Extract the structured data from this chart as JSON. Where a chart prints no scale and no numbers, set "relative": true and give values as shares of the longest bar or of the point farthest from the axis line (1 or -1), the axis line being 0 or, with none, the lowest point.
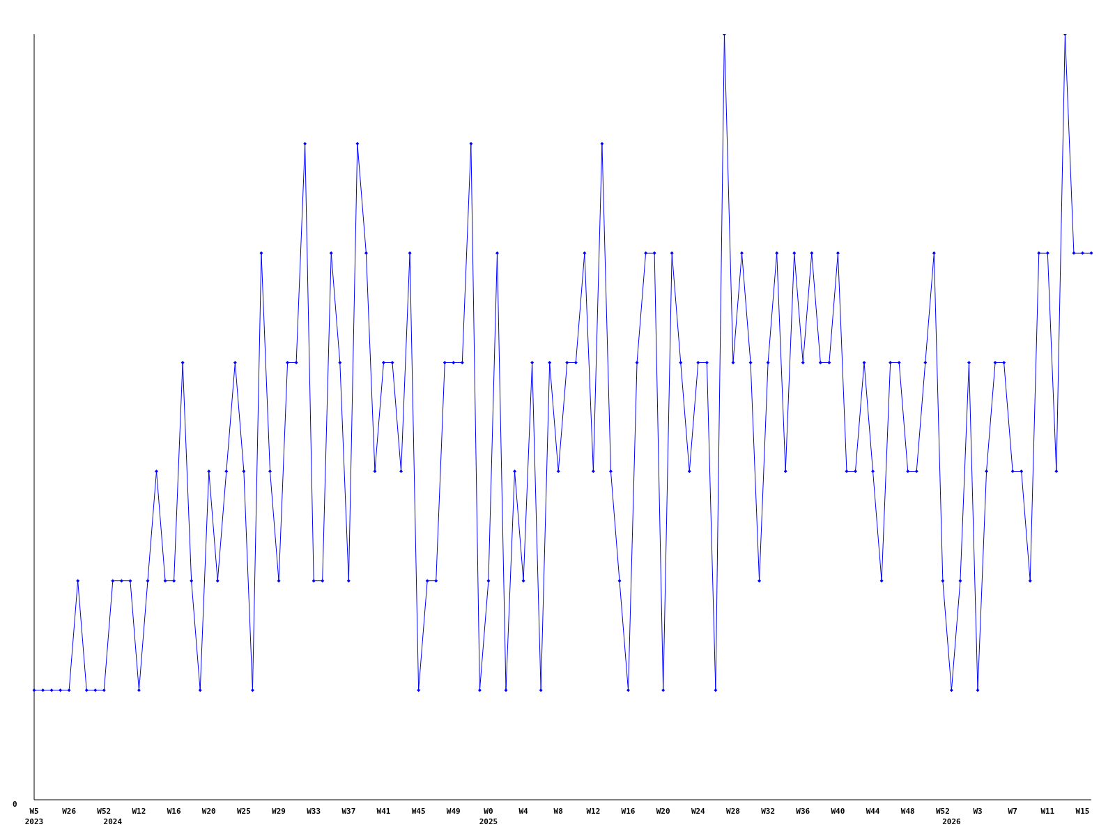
{
  "chart_data": {
    "type": "line",
    "relative": true,
    "color": "#0000ff",
    "marker": "diamond",
    "grid": false,
    "legend": false,
    "annotations": [
      "0"
    ],
    "categories": [
      "W5\n2023",
      null,
      null,
      null,
      "W26",
      null,
      null,
      null,
      "W52",
      "\n2024",
      null,
      null,
      "W12",
      null,
      null,
      null,
      "W16",
      null,
      null,
      null,
      "W20",
      null,
      null,
      null,
      "W25",
      null,
      null,
      null,
      "W29",
      null,
      null,
      null,
      "W33",
      null,
      null,
      null,
      "W37",
      null,
      null,
      null,
      "W41",
      null,
      null,
      null,
      "W45",
      null,
      null,
      null,
      "W49",
      null,
      null,
      null,
      "W0\n2025",
      null,
      null,
      null,
      "W4",
      null,
      null,
      null,
      "W8",
      null,
      null,
      null,
      "W12",
      null,
      null,
      null,
      "W16",
      null,
      null,
      null,
      "W20",
      null,
      null,
      null,
      "W24",
      null,
      null,
      null,
      "W28",
      null,
      null,
      null,
      "W32",
      null,
      null,
      null,
      "W36",
      null,
      null,
      null,
      "W40",
      null,
      null,
      null,
      "W44",
      null,
      null,
      null,
      "W48",
      null,
      null,
      null,
      "W52",
      "\n2026",
      null,
      null,
      "W3",
      null,
      null,
      null,
      "W7",
      null,
      null,
      null,
      "W11",
      null,
      null,
      null,
      "W15",
      null
    ],
    "values": [
      0.143,
      0.143,
      0.143,
      0.143,
      0.143,
      0.286,
      0.143,
      0.143,
      0.143,
      0.286,
      0.286,
      0.286,
      0.143,
      0.286,
      0.429,
      0.286,
      0.286,
      0.571,
      0.286,
      0.143,
      0.429,
      0.286,
      0.429,
      0.571,
      0.429,
      0.143,
      0.714,
      0.429,
      0.286,
      0.571,
      0.571,
      0.857,
      0.286,
      0.286,
      0.714,
      0.571,
      0.286,
      0.857,
      0.714,
      0.429,
      0.571,
      0.571,
      0.429,
      0.714,
      0.143,
      0.286,
      0.286,
      0.571,
      0.571,
      0.571,
      0.857,
      0.143,
      0.286,
      0.714,
      0.143,
      0.429,
      0.286,
      0.571,
      0.143,
      0.571,
      0.429,
      0.571,
      0.571,
      0.714,
      0.429,
      0.857,
      0.429,
      0.286,
      0.143,
      0.571,
      0.714,
      0.714,
      0.143,
      0.714,
      0.571,
      0.429,
      0.571,
      0.571,
      0.143,
      1,
      0.571,
      0.714,
      0.571,
      0.286,
      0.571,
      0.714,
      0.429,
      0.714,
      0.571,
      0.714,
      0.571,
      0.571,
      0.714,
      0.429,
      0.429,
      0.571,
      0.429,
      0.286,
      0.571,
      0.571,
      0.429,
      0.429,
      0.571,
      0.714,
      0.286,
      0.143,
      0.286,
      0.571,
      0.143,
      0.429,
      0.571,
      0.571,
      0.429,
      0.429,
      0.286,
      0.714,
      0.714,
      0.429,
      1,
      0.714,
      0.714,
      0.714
    ]
  }
}
